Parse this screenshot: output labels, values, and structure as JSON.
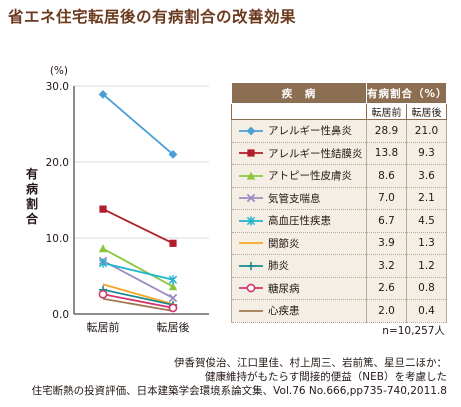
{
  "title": "省エネ住宅転居後の有病割合の改善効果",
  "chart_data": {
    "type": "line",
    "unit_label": "(%)",
    "ylabel": "有病割合",
    "ylim": [
      0,
      30
    ],
    "yticks": [
      "0.0",
      "10.0",
      "20.0",
      "30.0"
    ],
    "categories": [
      "転居前",
      "転居後"
    ],
    "series": [
      {
        "name": "アレルギー性鼻炎",
        "values": [
          28.9,
          21.0
        ],
        "display": [
          "28.9",
          "21.0"
        ],
        "color": "#4a9fd6",
        "marker": "diamond"
      },
      {
        "name": "アレルギー性結膜炎",
        "values": [
          13.8,
          9.3
        ],
        "display": [
          "13.8",
          "9.3"
        ],
        "color": "#b21d2b",
        "marker": "square"
      },
      {
        "name": "アトピー性皮膚炎",
        "values": [
          8.6,
          3.6
        ],
        "display": [
          "8.6",
          "3.6"
        ],
        "color": "#8cc63f",
        "marker": "triangle"
      },
      {
        "name": "気管支喘息",
        "values": [
          7.0,
          2.1
        ],
        "display": [
          "7.0",
          "2.1"
        ],
        "color": "#9b8dc4",
        "marker": "x"
      },
      {
        "name": "高血圧性疾患",
        "values": [
          6.7,
          4.5
        ],
        "display": [
          "6.7",
          "4.5"
        ],
        "color": "#1fb5cc",
        "marker": "asterisk"
      },
      {
        "name": "関節炎",
        "values": [
          3.9,
          1.3
        ],
        "display": [
          "3.9",
          "1.3"
        ],
        "color": "#f5a623",
        "marker": "none"
      },
      {
        "name": "肺炎",
        "values": [
          3.2,
          1.2
        ],
        "display": [
          "3.2",
          "1.2"
        ],
        "color": "#1b8a8f",
        "marker": "plus"
      },
      {
        "name": "糖尿病",
        "values": [
          2.6,
          0.8
        ],
        "display": [
          "2.6",
          "0.8"
        ],
        "color": "#d6336c",
        "marker": "circle"
      },
      {
        "name": "心疾患",
        "values": [
          2.0,
          0.4
        ],
        "display": [
          "2.0",
          "0.4"
        ],
        "color": "#a07850",
        "marker": "none"
      }
    ]
  },
  "table": {
    "header_disease": "疾　病",
    "header_rate": "有病割合（%）",
    "sub_before": "転居前",
    "sub_after": "転居後"
  },
  "note": "n=10,257人",
  "source": {
    "line1": "伊香賀俊治、江口里佳、村上周三、岩前篤、星旦二ほか：",
    "line2": "健康維持がもたらす間接的便益（NEB）を考慮した",
    "line3": "住宅断熱の投資評価、日本建築学会環境系論文集、Vol.76 No.666,pp735-740,2011.8"
  }
}
